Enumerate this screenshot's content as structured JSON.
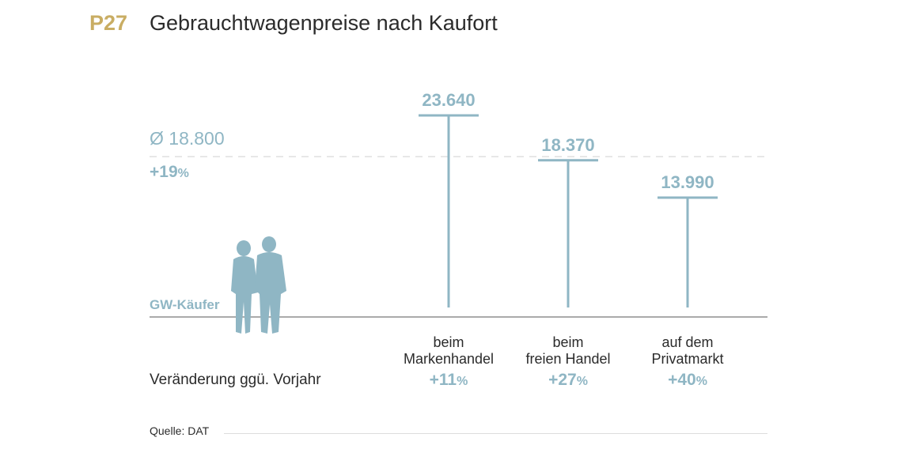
{
  "header": {
    "code": "P27",
    "title": "Gebrauchtwagenpreise nach Kaufort"
  },
  "average": {
    "label": "Ø 18.800",
    "value": 18800,
    "change": "+19",
    "change_unit": "%"
  },
  "buyer_label": "GW-Käufer",
  "change_caption": "Veränderung ggü. Vorjahr",
  "source": "Quelle: DAT",
  "colors": {
    "accent": "#8fb6c4",
    "code": "#c9ad63",
    "text": "#2b2b2b"
  },
  "chart_data": {
    "type": "bar",
    "categories": [
      [
        "beim",
        "Markenhandel"
      ],
      [
        "beim",
        "freien Handel"
      ],
      [
        "auf dem",
        "Privatmarkt"
      ]
    ],
    "values": [
      23640,
      18370,
      13990
    ],
    "value_labels": [
      "23.640",
      "18.370",
      "13.990"
    ],
    "changes": [
      "+11",
      "+27",
      "+40"
    ],
    "change_unit": "%",
    "reference_line": 18800,
    "grid": false
  }
}
